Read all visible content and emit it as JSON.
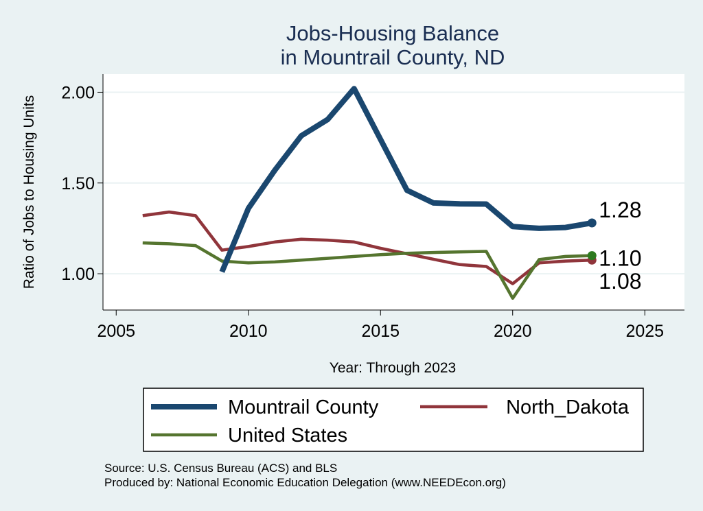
{
  "chart_data": {
    "type": "line",
    "title": [
      "Jobs-Housing Balance",
      "in Mountrail County, ND"
    ],
    "xlabel": "Year: Through 2023",
    "ylabel": "Ratio of Jobs to Housing Units",
    "xlim": [
      2004.5,
      2026.5
    ],
    "ylim": [
      0.8,
      2.1
    ],
    "xticks": [
      2005,
      2010,
      2015,
      2020,
      2025
    ],
    "yticks": [
      1.0,
      1.5,
      2.0
    ],
    "ytick_labels": [
      "1.00",
      "1.50",
      "2.00"
    ],
    "grid": "horizontal",
    "series": [
      {
        "name": "Mountrail County",
        "color": "#1a476f",
        "x": [
          2009,
          2010,
          2011,
          2012,
          2013,
          2014,
          2015,
          2016,
          2017,
          2018,
          2019,
          2020,
          2021,
          2022,
          2023
        ],
        "values": [
          1.01,
          1.36,
          1.57,
          1.76,
          1.85,
          2.02,
          1.74,
          1.46,
          1.39,
          1.385,
          1.384,
          1.26,
          1.25,
          1.255,
          1.28
        ],
        "end_label": "1.28"
      },
      {
        "name": "North_Dakota",
        "color": "#90353b",
        "x": [
          2006,
          2007,
          2008,
          2009,
          2010,
          2011,
          2012,
          2013,
          2014,
          2015,
          2016,
          2017,
          2018,
          2019,
          2020,
          2021,
          2022,
          2023
        ],
        "values": [
          1.32,
          1.34,
          1.32,
          1.13,
          1.15,
          1.175,
          1.19,
          1.185,
          1.175,
          1.14,
          1.11,
          1.08,
          1.05,
          1.04,
          0.945,
          1.06,
          1.07,
          1.075
        ],
        "end_label": "1.08"
      },
      {
        "name": "United States",
        "color": "#55752f",
        "x": [
          2006,
          2007,
          2008,
          2009,
          2010,
          2011,
          2012,
          2013,
          2014,
          2015,
          2016,
          2017,
          2018,
          2019,
          2020,
          2021,
          2022,
          2023
        ],
        "values": [
          1.17,
          1.165,
          1.155,
          1.07,
          1.06,
          1.065,
          1.075,
          1.085,
          1.095,
          1.105,
          1.113,
          1.117,
          1.12,
          1.123,
          0.865,
          1.078,
          1.095,
          1.1
        ],
        "end_label": "1.10"
      }
    ],
    "legend": {
      "placement": "bottom",
      "order": [
        "Mountrail County",
        "North_Dakota",
        "United States"
      ]
    },
    "notes": [
      "Source: U.S. Census Bureau (ACS) and BLS",
      "Produced by: National Economic Education Delegation (www.NEEDEcon.org)"
    ]
  }
}
